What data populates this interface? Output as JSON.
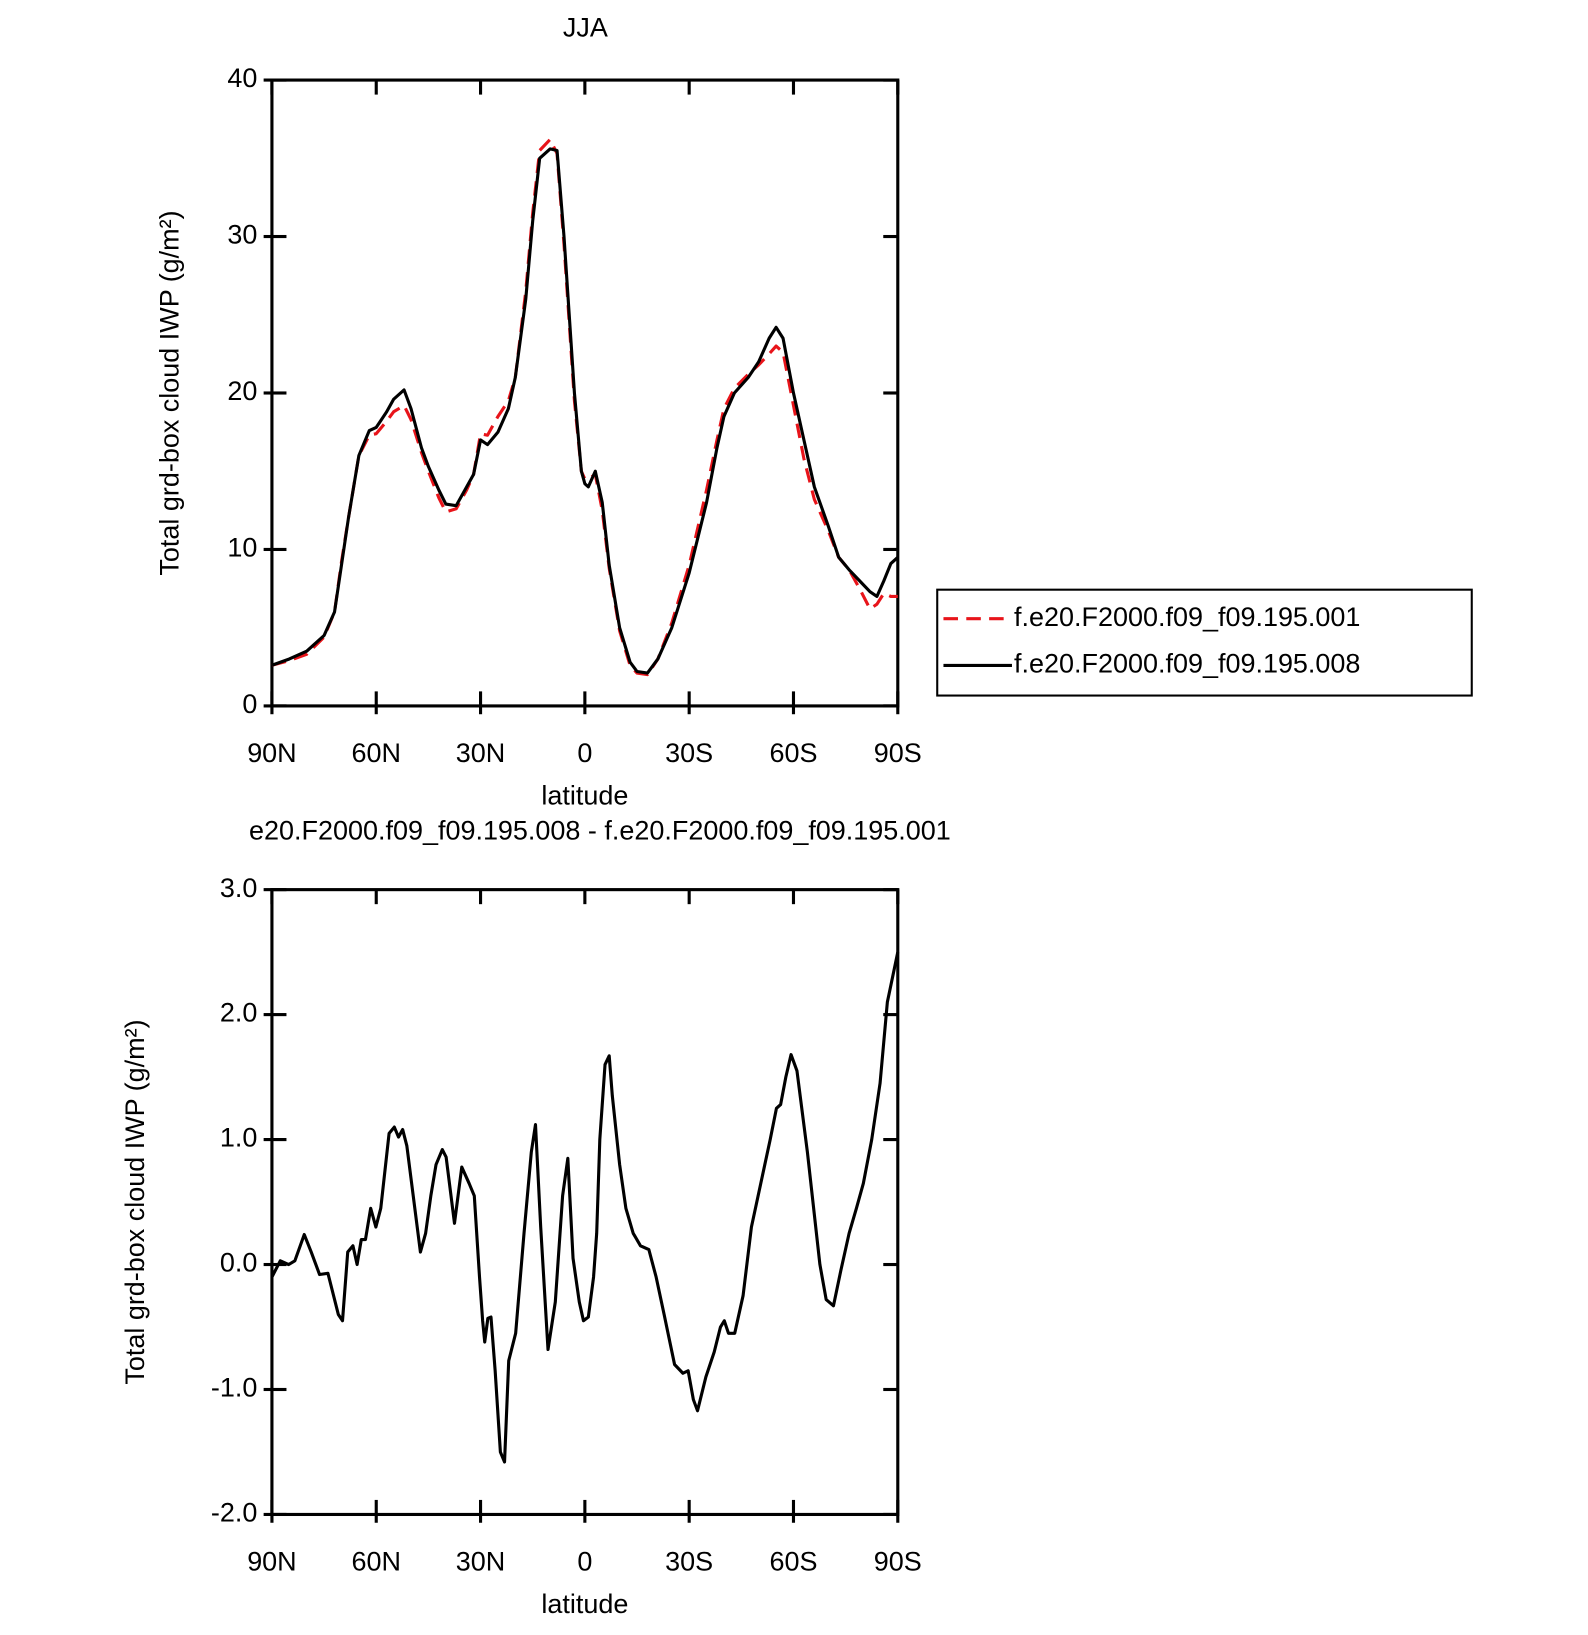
{
  "chart_data": [
    {
      "type": "line",
      "title": "JJA",
      "x_label": "latitude",
      "y_label": "Total grd-box cloud IWP (g/m²)",
      "xlim": [
        90,
        -90
      ],
      "ylim": [
        0,
        40
      ],
      "xticks": [
        {
          "value": 90,
          "label": "90N"
        },
        {
          "value": 60,
          "label": "60N"
        },
        {
          "value": 30,
          "label": "30N"
        },
        0,
        {
          "value": -30,
          "label": "30S"
        },
        {
          "value": -60,
          "label": "60S"
        },
        {
          "value": -90,
          "label": "90S"
        }
      ],
      "yticks": [
        0,
        10,
        20,
        30,
        40
      ],
      "legend": "right",
      "x": [
        90,
        85,
        80,
        75,
        72,
        70,
        68,
        65,
        62,
        60,
        57,
        55,
        52,
        50,
        47,
        45,
        42,
        40,
        37,
        34,
        32,
        30,
        28,
        25,
        22,
        20,
        17,
        15,
        13,
        10,
        8,
        6,
        3,
        1,
        0,
        -1,
        -3,
        -5,
        -7,
        -10,
        -13,
        -15,
        -18,
        -21,
        -25,
        -30,
        -35,
        -38,
        -40,
        -43,
        -47,
        -50,
        -53,
        -55,
        -57,
        -60,
        -63,
        -66,
        -70,
        -73,
        -76,
        -79,
        -82,
        -84,
        -86,
        -88,
        -90
      ],
      "series": [
        {
          "name": "f.e20.F2000.f09_f09.195.001",
          "color": "#e8141a",
          "linestyle": "dashed",
          "values": [
            2.6,
            2.9,
            3.3,
            4.4,
            6,
            9.2,
            12,
            16,
            17.3,
            17.4,
            18.2,
            18.8,
            19.2,
            18.3,
            16.2,
            15,
            13.3,
            12.4,
            12.6,
            13.8,
            14.8,
            17.4,
            17.3,
            18.5,
            19.5,
            21,
            26.5,
            31.5,
            35.5,
            36.2,
            35.3,
            29.5,
            19.5,
            15,
            14.5,
            14.5,
            14.8,
            12.5,
            8.8,
            4.8,
            2.6,
            2.1,
            2,
            3,
            5.3,
            9,
            13.8,
            17,
            19,
            20.3,
            21.2,
            21.8,
            22.5,
            23,
            22.6,
            19.2,
            15.8,
            13.2,
            11.2,
            9.5,
            8.7,
            7.5,
            6.2,
            6.5,
            7.2,
            7,
            7
          ]
        },
        {
          "name": "f.e20.F2000.f09_f09.195.008",
          "color": "#000000",
          "linestyle": "solid",
          "values": [
            2.6,
            3.0,
            3.5,
            4.5,
            6,
            9,
            12,
            16,
            17.6,
            17.8,
            18.8,
            19.6,
            20.2,
            19,
            16.5,
            15.3,
            13.8,
            12.9,
            12.8,
            14,
            14.8,
            17,
            16.7,
            17.5,
            19,
            21,
            26,
            31,
            35,
            35.6,
            35.5,
            30,
            20,
            15,
            14.2,
            14,
            15,
            13,
            9,
            5,
            2.8,
            2.2,
            2.1,
            3,
            5,
            8.5,
            13,
            16.5,
            18.5,
            20,
            21,
            22,
            23.5,
            24.2,
            23.5,
            20,
            17,
            14,
            11.5,
            9.5,
            8.7,
            8,
            7.3,
            7,
            8,
            9.1,
            9.5
          ]
        }
      ]
    },
    {
      "type": "line",
      "title": "e20.F2000.f09_f09.195.008 - f.e20.F2000.f09_f09.195.001",
      "x_label": "latitude",
      "y_label": "Total grd-box cloud IWP (g/m²)",
      "xlim": [
        90,
        -90
      ],
      "ylim": [
        -2,
        3
      ],
      "xticks": [
        {
          "value": 90,
          "label": "90N"
        },
        {
          "value": 60,
          "label": "60N"
        },
        {
          "value": 30,
          "label": "30N"
        },
        0,
        {
          "value": -30,
          "label": "30S"
        },
        {
          "value": -60,
          "label": "60S"
        },
        {
          "value": -90,
          "label": "90S"
        }
      ],
      "yticks": [
        {
          "value": 3,
          "label": "3.0"
        },
        {
          "value": 2,
          "label": "2.0"
        },
        {
          "value": 1,
          "label": "1.0"
        },
        {
          "value": 0,
          "label": "0.0"
        },
        {
          "value": -1,
          "label": "-1.0"
        },
        {
          "value": -2,
          "label": "-2.0"
        }
      ],
      "color": "#000000",
      "x": [
        90,
        87.6,
        85.2,
        83.4,
        80.7,
        78.7,
        76.3,
        73.9,
        70.9,
        69.7,
        68.2,
        66.7,
        65.5,
        64.3,
        63.1,
        61.6,
        60.1,
        58.7,
        56.3,
        54.8,
        53.6,
        52.4,
        51.2,
        47.3,
        45.8,
        44.3,
        42.8,
        41.0,
        39.9,
        37.5,
        35.4,
        33.3,
        31.8,
        30.3,
        29.4,
        28.8,
        27.9,
        27.0,
        25.8,
        24.3,
        23.1,
        21.9,
        19.9,
        17.5,
        15.4,
        14.2,
        12.7,
        10.6,
        8.5,
        6.4,
        4.9,
        3.4,
        1.6,
        0.4,
        -1.0,
        -2.5,
        -3.4,
        -4.3,
        -5.8,
        -7.0,
        -7.9,
        -10.0,
        -11.8,
        -13.9,
        -16.0,
        -18.4,
        -20.5,
        -22.8,
        -24.3,
        -25.8,
        -28.2,
        -29.7,
        -31.2,
        -32.4,
        -34.8,
        -37.2,
        -39.0,
        -40.1,
        -41.3,
        -43.1,
        -45.5,
        -47.9,
        -50.6,
        -53.3,
        -55.1,
        -56.3,
        -57.8,
        -59.3,
        -61.0,
        -64.0,
        -67.6,
        -69.4,
        -71.5,
        -73.6,
        -76.0,
        -78.1,
        -80.1,
        -82.5,
        -84.9,
        -87.0,
        -90.0
      ],
      "values": [
        -0.1,
        0.03,
        0.0,
        0.03,
        0.24,
        0.1,
        -0.08,
        -0.07,
        -0.4,
        -0.45,
        0.1,
        0.15,
        0.0,
        0.2,
        0.2,
        0.45,
        0.3,
        0.45,
        1.05,
        1.1,
        1.02,
        1.08,
        0.95,
        0.1,
        0.25,
        0.55,
        0.8,
        0.92,
        0.86,
        0.33,
        0.78,
        0.65,
        0.55,
        -0.1,
        -0.45,
        -0.62,
        -0.43,
        -0.42,
        -0.85,
        -1.5,
        -1.58,
        -0.77,
        -0.55,
        0.25,
        0.9,
        1.12,
        0.3,
        -0.68,
        -0.3,
        0.55,
        0.85,
        0.05,
        -0.3,
        -0.45,
        -0.42,
        -0.1,
        0.25,
        1.0,
        1.6,
        1.67,
        1.35,
        0.8,
        0.45,
        0.25,
        0.15,
        0.12,
        -0.1,
        -0.4,
        -0.6,
        -0.8,
        -0.87,
        -0.85,
        -1.08,
        -1.17,
        -0.9,
        -0.7,
        -0.5,
        -0.45,
        -0.55,
        -0.55,
        -0.25,
        0.3,
        0.65,
        1.0,
        1.25,
        1.28,
        1.5,
        1.68,
        1.55,
        0.9,
        0.0,
        -0.28,
        -0.33,
        -0.05,
        0.25,
        0.45,
        0.65,
        1.0,
        1.45,
        2.1,
        2.5
      ]
    }
  ]
}
